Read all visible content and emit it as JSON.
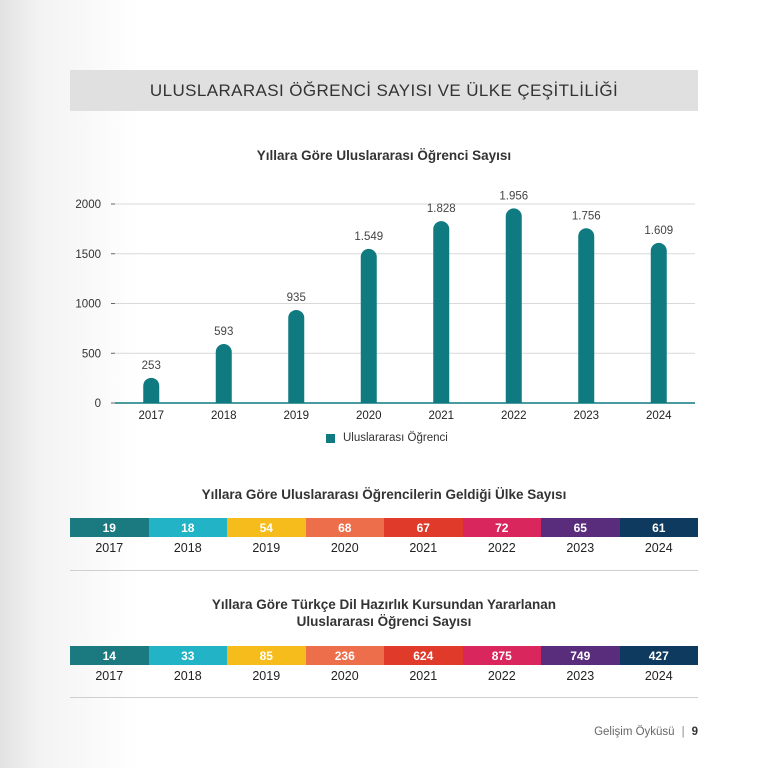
{
  "banner_title": "ULUSLARARASI ÖĞRENCİ SAYISI VE ÜLKE ÇEŞİTLİLİĞİ",
  "chart_data": [
    {
      "type": "bar",
      "title": "Yıllara Göre Uluslararası Öğrenci Sayısı",
      "categories": [
        "2017",
        "2018",
        "2019",
        "2020",
        "2021",
        "2022",
        "2023",
        "2024"
      ],
      "series": [
        {
          "name": "Uluslararası Öğrenci",
          "values": [
            253,
            593,
            935,
            1549,
            1828,
            1956,
            1756,
            1609
          ]
        }
      ],
      "value_labels": [
        "253",
        "593",
        "935",
        "1.549",
        "1.828",
        "1.956",
        "1.756",
        "1.609"
      ],
      "yticks": [
        "0",
        "500",
        "1000",
        "1500",
        "2000"
      ],
      "ylim": [
        0,
        2000
      ],
      "grid": true,
      "legend_position": "bottom",
      "color": "#0f7a80"
    },
    {
      "type": "table",
      "title": "Yıllara Göre Uluslararası Öğrencilerin Geldiği Ülke Sayısı",
      "categories": [
        "2017",
        "2018",
        "2019",
        "2020",
        "2021",
        "2022",
        "2023",
        "2024"
      ],
      "values": [
        19,
        18,
        54,
        68,
        67,
        72,
        65,
        61
      ]
    },
    {
      "type": "table",
      "title_line1": "Yıllara Göre Türkçe Dil Hazırlık Kursundan Yararlanan",
      "title_line2": "Uluslararası Öğrenci Sayısı",
      "categories": [
        "2017",
        "2018",
        "2019",
        "2020",
        "2021",
        "2022",
        "2023",
        "2024"
      ],
      "values": [
        14,
        33,
        85,
        236,
        624,
        875,
        749,
        427
      ]
    }
  ],
  "strip_colors": [
    "#1a7a80",
    "#22b3c6",
    "#f5bc1c",
    "#ec6e4a",
    "#e03a2b",
    "#d9275e",
    "#5a2d7c",
    "#0d3a5e"
  ],
  "footer": {
    "section": "Gelişim Öyküsü",
    "separator": "|",
    "page": "9"
  }
}
